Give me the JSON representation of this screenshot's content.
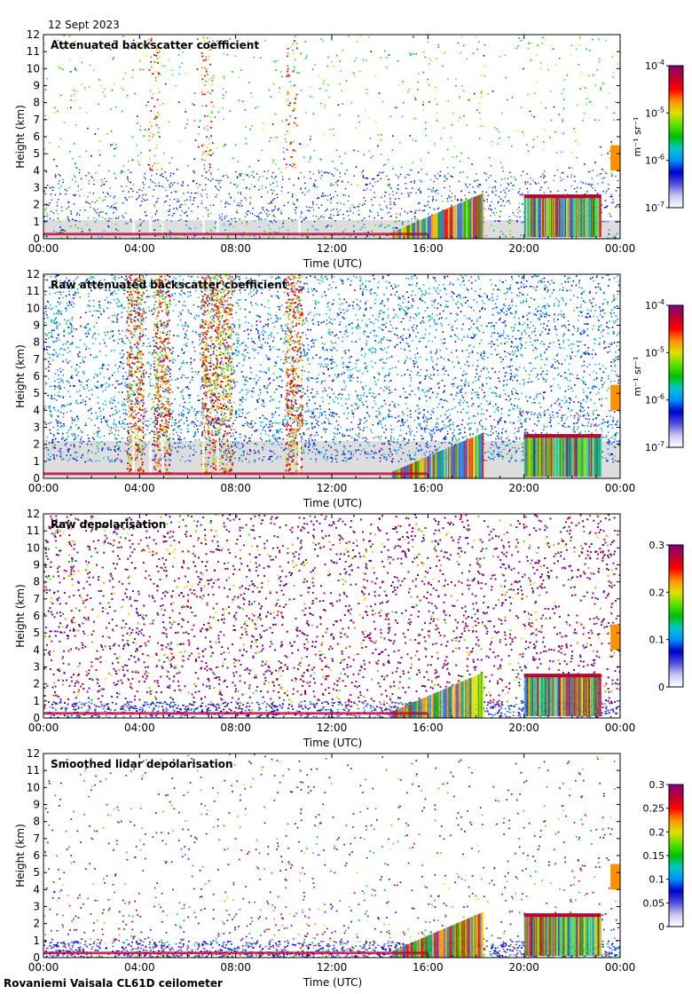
{
  "header": {
    "date": "12 Sept 2023"
  },
  "footer": {
    "caption": "Rovaniemi Vaisala CL61D ceilometer"
  },
  "colors": {
    "background": "#ffffff",
    "low_signal": "#d9d9d9",
    "colormap": [
      "#ffffff",
      "#c8c8f0",
      "#5050e0",
      "#0000c8",
      "#0090ff",
      "#00c8c8",
      "#00c000",
      "#60e000",
      "#e0e000",
      "#ff9000",
      "#ff0000",
      "#c00030",
      "#800080"
    ]
  },
  "chart_data": [
    {
      "type": "heatmap",
      "title": "Attenuated backscatter coefficient",
      "xlabel": "Time (UTC)",
      "ylabel": "Height (km)",
      "x_ticks": [
        "00:00",
        "04:00",
        "08:00",
        "12:00",
        "16:00",
        "20:00",
        "00:00"
      ],
      "x_range_hours": [
        0,
        24
      ],
      "y_ticks": [
        "0",
        "1",
        "2",
        "3",
        "4",
        "5",
        "6",
        "7",
        "8",
        "9",
        "10",
        "11",
        "12"
      ],
      "ylim": [
        0,
        12
      ],
      "colorbar": {
        "scale": "log",
        "range": [
          1e-07,
          0.0001
        ],
        "ticks": [
          {
            "base": "10",
            "exp": "-4"
          },
          {
            "base": "10",
            "exp": "-5"
          },
          {
            "base": "10",
            "exp": "-6"
          },
          {
            "base": "10",
            "exp": "-7"
          }
        ],
        "unit": "m⁻¹ sr⁻¹"
      },
      "features": [
        {
          "name": "noise floor / boundary layer",
          "start_h": 0,
          "end_h": 24,
          "top_km": 1.0
        },
        {
          "name": "high signal streaks",
          "times_h": [
            4.6,
            6.8,
            10.3
          ],
          "heights_km": [
            4,
            12
          ]
        },
        {
          "name": "rising cloud layer",
          "start_h": 14.5,
          "end_h": 18.3,
          "base_km": [
            0.2,
            2.5
          ]
        },
        {
          "name": "low cloud layer",
          "start_h": 20.0,
          "end_h": 23.2,
          "base_km": 2.5,
          "top_km": 2.0
        },
        {
          "name": "cloud late evening",
          "start_h": 23.6,
          "end_h": 24.0,
          "base_km": 4.2
        }
      ]
    },
    {
      "type": "heatmap",
      "title": "Raw attenuated backscatter coefficient",
      "xlabel": "Time (UTC)",
      "ylabel": "Height (km)",
      "x_ticks": [
        "00:00",
        "04:00",
        "08:00",
        "12:00",
        "16:00",
        "20:00",
        "00:00"
      ],
      "x_range_hours": [
        0,
        24
      ],
      "y_ticks": [
        "0",
        "1",
        "2",
        "3",
        "4",
        "5",
        "6",
        "7",
        "8",
        "9",
        "10",
        "11",
        "12"
      ],
      "ylim": [
        0,
        12
      ],
      "colorbar": {
        "scale": "log",
        "range": [
          1e-07,
          0.0001
        ],
        "ticks": [
          {
            "base": "10",
            "exp": "-4"
          },
          {
            "base": "10",
            "exp": "-5"
          },
          {
            "base": "10",
            "exp": "-6"
          },
          {
            "base": "10",
            "exp": "-7"
          }
        ],
        "unit": "m⁻¹ sr⁻¹"
      },
      "features": [
        {
          "name": "noise",
          "start_h": 0,
          "end_h": 24,
          "heights_km": [
            1,
            12
          ]
        },
        {
          "name": "solar noise bands",
          "times_h": [
            3.8,
            4.9,
            6.9,
            7.5,
            10.4
          ],
          "heights_km": [
            0,
            12
          ]
        },
        {
          "name": "rising cloud layer",
          "start_h": 14.5,
          "end_h": 18.3,
          "base_km": [
            0.2,
            2.5
          ]
        },
        {
          "name": "low cloud layer",
          "start_h": 20.0,
          "end_h": 23.2,
          "base_km": 2.5
        }
      ]
    },
    {
      "type": "heatmap",
      "title": "Raw depolarisation",
      "xlabel": "Time (UTC)",
      "ylabel": "Height (km)",
      "x_ticks": [
        "00:00",
        "04:00",
        "08:00",
        "12:00",
        "16:00",
        "20:00",
        "00:00"
      ],
      "x_range_hours": [
        0,
        24
      ],
      "y_ticks": [
        "0",
        "1",
        "2",
        "3",
        "4",
        "5",
        "6",
        "7",
        "8",
        "9",
        "10",
        "11",
        "12"
      ],
      "ylim": [
        0,
        12
      ],
      "colorbar": {
        "scale": "linear",
        "range": [
          0,
          0.3
        ],
        "ticks": [
          "0.3",
          "0.2",
          "0.1",
          "0"
        ]
      },
      "features": [
        {
          "name": "noise (saturated)",
          "start_h": 0,
          "end_h": 24,
          "heights_km": [
            0.5,
            12
          ]
        },
        {
          "name": "cloud depolarisation",
          "start_h": 20.0,
          "end_h": 23.2,
          "heights_km": [
            0.2,
            2.5
          ]
        }
      ]
    },
    {
      "type": "heatmap",
      "title": "Smoothed lidar depolarisation",
      "xlabel": "Time (UTC)",
      "ylabel": "Height (km)",
      "x_ticks": [
        "00:00",
        "04:00",
        "08:00",
        "12:00",
        "16:00",
        "20:00",
        "00:00"
      ],
      "x_range_hours": [
        0,
        24
      ],
      "y_ticks": [
        "0",
        "1",
        "2",
        "3",
        "4",
        "5",
        "6",
        "7",
        "8",
        "9",
        "10",
        "11",
        "12"
      ],
      "ylim": [
        0,
        12
      ],
      "colorbar": {
        "scale": "linear",
        "range": [
          0,
          0.3
        ],
        "ticks": [
          "0.3",
          "0.25",
          "0.2",
          "0.15",
          "0.1",
          "0.05",
          "0"
        ]
      },
      "features": [
        {
          "name": "boundary layer",
          "start_h": 0,
          "end_h": 24,
          "top_km": 1.0
        },
        {
          "name": "sparse aerosol",
          "start_h": 2.5,
          "end_h": 20,
          "heights_km": [
            0.5,
            3
          ]
        },
        {
          "name": "cloud depolarisation",
          "start_h": 20.0,
          "end_h": 23.2,
          "heights_km": [
            0.2,
            2.5
          ]
        },
        {
          "name": "cloud late evening",
          "start_h": 23.6,
          "end_h": 24.0,
          "base_km": 4.2
        }
      ]
    }
  ]
}
